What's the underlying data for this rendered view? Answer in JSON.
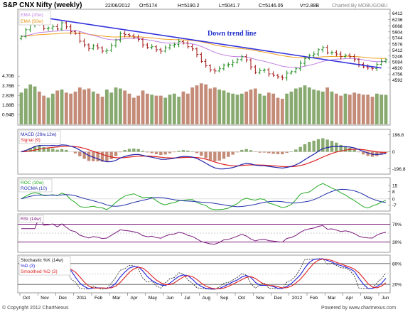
{
  "header": {
    "title": "S&P CNX Nifty (weekly)",
    "date": "22/06/2012",
    "open": "O=5174",
    "high": "H=5190.2",
    "low": "L=5041.7",
    "close": "C=5146.05",
    "volume": "V=2.88B",
    "charted_by": "Charted By MOBUGOBU"
  },
  "footer": {
    "copyright": "© Copyright 2012 ChartNexus",
    "powered_by": "Powered by www.chartnexus.com"
  },
  "colors": {
    "price_up": "#1a8a1a",
    "price_down": "#a01010",
    "ema20": "#c080e0",
    "ema50": "#f0a020",
    "trendline": "#3333dd",
    "vol_up": "#88aa70",
    "vol_down": "#c48c78",
    "macd": "#2222aa",
    "signal": "#dd2222",
    "roc": "#22aa22",
    "rocma": "#2233aa",
    "rsi": "#7a1a7a",
    "stoch_k": "#111111",
    "stoch_d": "#2222dd",
    "stoch_sd": "#dd2222",
    "panel_border": "#9a9a9a"
  },
  "chart_data": [
    {
      "type": "candlestick",
      "panel": "price",
      "legend": [
        "EMA (20w)",
        "EMA (50w)"
      ],
      "annotation": "Down trend line",
      "yticks": [
        6412,
        6236,
        6068,
        5904,
        5744,
        5576,
        5412,
        5246,
        5084,
        4920,
        4756,
        4592
      ],
      "ylim": [
        4450,
        6500
      ],
      "volume_ticks": [
        "4.70B",
        "3.76B",
        "2.82B",
        "1.88B",
        "0.94B"
      ],
      "volume_max_B": 5.2,
      "x_labels": [
        "Oct",
        "Nov",
        "Dec",
        "2011",
        "Feb",
        "Mar",
        "Apr",
        "May",
        "Jun",
        "Jul",
        "Aug",
        "Sep",
        "Oct",
        "Nov",
        "Dec",
        "2012",
        "Feb",
        "Mar",
        "Apr",
        "May",
        "Jun"
      ],
      "close": [
        5780,
        5960,
        6100,
        6180,
        6120,
        5990,
        6010,
        6050,
        5980,
        6150,
        6040,
        5910,
        5860,
        5650,
        5550,
        5450,
        5520,
        5470,
        5380,
        5400,
        5530,
        5680,
        5860,
        5830,
        5800,
        5760,
        5700,
        5550,
        5480,
        5500,
        5420,
        5380,
        5470,
        5540,
        5560,
        5640,
        5600,
        5500,
        5440,
        5290,
        5100,
        4980,
        4870,
        4840,
        4900,
        5000,
        5020,
        5080,
        5150,
        5230,
        5140,
        4950,
        4800,
        4850,
        4870,
        4760,
        4720,
        4680,
        4650,
        4780,
        4820,
        4900,
        5050,
        5180,
        5250,
        5300,
        5420,
        5480,
        5330,
        5350,
        5300,
        5230,
        5270,
        5230,
        5150,
        5020,
        4950,
        4920,
        4910,
        5020,
        5100,
        5146
      ],
      "volume_B": [
        3.1,
        3.5,
        3.9,
        3.7,
        3.2,
        2.8,
        2.6,
        3.0,
        3.3,
        3.4,
        3.1,
        3.0,
        3.2,
        3.6,
        3.4,
        3.5,
        3.2,
        3.0,
        2.7,
        3.4,
        3.1,
        3.6,
        3.5,
        3.3,
        3.0,
        2.6,
        2.8,
        3.3,
        3.0,
        2.9,
        2.8,
        2.8,
        2.6,
        2.9,
        3.0,
        2.7,
        3.2,
        3.0,
        3.6,
        3.8,
        4.0,
        3.9,
        3.5,
        3.6,
        3.4,
        3.3,
        3.1,
        3.0,
        2.9,
        3.0,
        3.2,
        3.4,
        3.5,
        3.0,
        2.8,
        3.1,
        3.0,
        2.6,
        2.5,
        3.0,
        3.2,
        3.5,
        3.6,
        3.8,
        3.6,
        3.4,
        3.3,
        3.2,
        3.6,
        3.2,
        3.0,
        2.8,
        3.0,
        2.9,
        3.1,
        3.0,
        2.9,
        2.9,
        2.7,
        3.0,
        2.9,
        2.88
      ],
      "trendline": [
        [
          0,
          6380
        ],
        [
          80,
          4920
        ]
      ]
    },
    {
      "type": "line",
      "panel": "macd",
      "legend": [
        "MACD (26w,12w)",
        "Signal (9)"
      ],
      "yticks": [
        196.8,
        0,
        -196.8
      ],
      "ylim": [
        -240,
        240
      ]
    },
    {
      "type": "line",
      "panel": "roc",
      "legend": [
        "ROC (10w)",
        "ROCMA (10)"
      ],
      "yticks": [
        15,
        8,
        0,
        -7
      ],
      "ylim": [
        -12,
        22
      ]
    },
    {
      "type": "line",
      "panel": "rsi",
      "legend": [
        "RSI (14w)"
      ],
      "yticks": [
        "70%",
        "30%"
      ],
      "ylim": [
        10,
        90
      ]
    },
    {
      "type": "line",
      "panel": "stochastic",
      "legend": [
        "Stochastic %K (14w)",
        "%D (3)",
        "Smoothed %D (3)"
      ],
      "yticks": [
        "80%",
        "20%"
      ],
      "ylim": [
        0,
        100
      ]
    }
  ]
}
